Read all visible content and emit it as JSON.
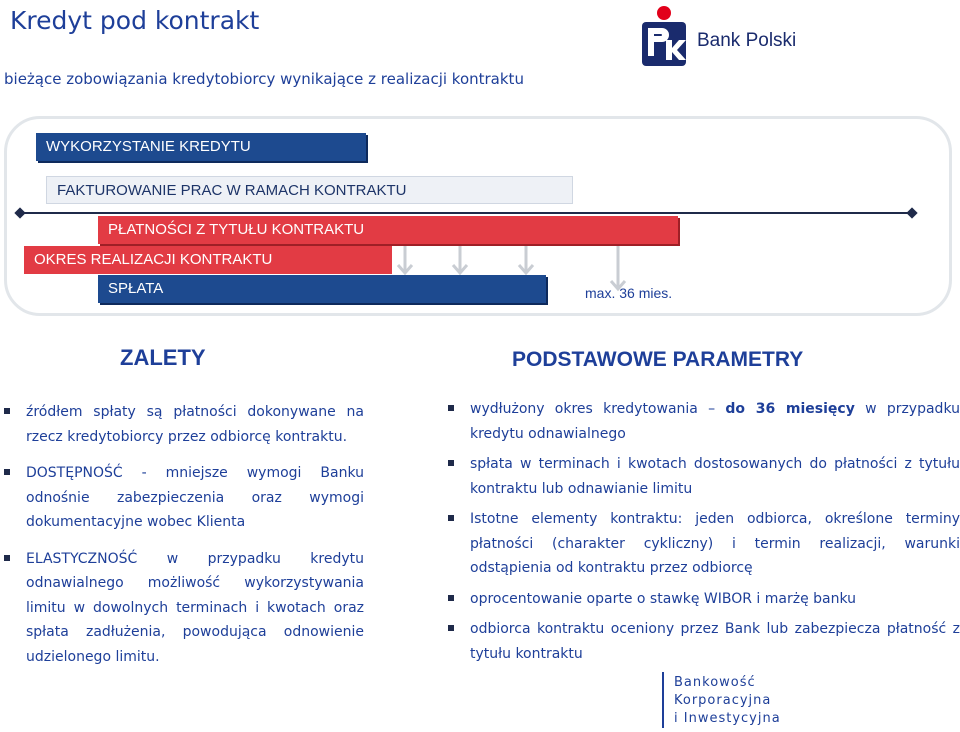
{
  "header": {
    "title": "Kredyt pod kontrakt",
    "subtitle": "bieżące zobowiązania kredytobiorcy wynikające z realizacji kontraktu"
  },
  "logo": {
    "text": "Bank Polski",
    "colors": {
      "navy": "#1a2b6d",
      "red": "#e2001a"
    }
  },
  "diagram": {
    "bars": [
      {
        "label": "WYKORZYSTANIE KREDYTU",
        "color": "#1d4a8f"
      },
      {
        "label": "FAKTUROWANIE PRAC W RAMACH KONTRAKTU",
        "color": "#f7f9fc"
      },
      {
        "label": "PŁATNOŚCI Z TYTUŁU KONTRAKTU",
        "color": "#e23b44"
      },
      {
        "label": "OKRES REALIZACJI KONTRAKTU",
        "color": "#e23b44"
      },
      {
        "label": "SPŁATA",
        "color": "#1d4a8f"
      }
    ],
    "max_label": "max. 36 mies."
  },
  "left": {
    "title": "ZALETY",
    "items": [
      "źródłem spłaty są płatności dokonywane na rzecz kredytobiorcy przez odbiorcę kontraktu.",
      "DOSTĘPNOŚĆ - mniejsze wymogi Banku odnośnie zabezpieczenia oraz wymogi dokumentacyjne wobec Klienta",
      "ELASTYCZNOŚĆ w przypadku kredytu odnawialnego możliwość wykorzystywania limitu w dowolnych terminach i kwotach oraz spłata zadłużenia, powodująca odnowienie udzielonego limitu."
    ]
  },
  "right": {
    "title": "PODSTAWOWE PARAMETRY",
    "items": [
      {
        "pre": "wydłużony okres kredytowania – ",
        "bold": "do 36 miesięcy",
        "post": " w przypadku kredytu odnawialnego"
      },
      {
        "pre": "spłata w terminach i kwotach dostosowanych do płatności z tytułu kontraktu lub odnawianie limitu",
        "bold": "",
        "post": ""
      },
      {
        "pre": "Istotne elementy kontraktu: jeden odbiorca, określone terminy płatności (charakter cykliczny) i termin realizacji, warunki odstąpienia od kontraktu przez odbiorcę",
        "bold": "",
        "post": ""
      },
      {
        "pre": "oprocentowanie oparte o stawkę WIBOR i marżę banku",
        "bold": "",
        "post": ""
      },
      {
        "pre": "odbiorca kontraktu oceniony przez Bank lub zabezpiecza płatność z tytułu kontraktu",
        "bold": "",
        "post": ""
      }
    ]
  },
  "footer": {
    "line1": "Bankowość",
    "line2": "Korporacyjna",
    "line3": "i Inwestycyjna"
  }
}
